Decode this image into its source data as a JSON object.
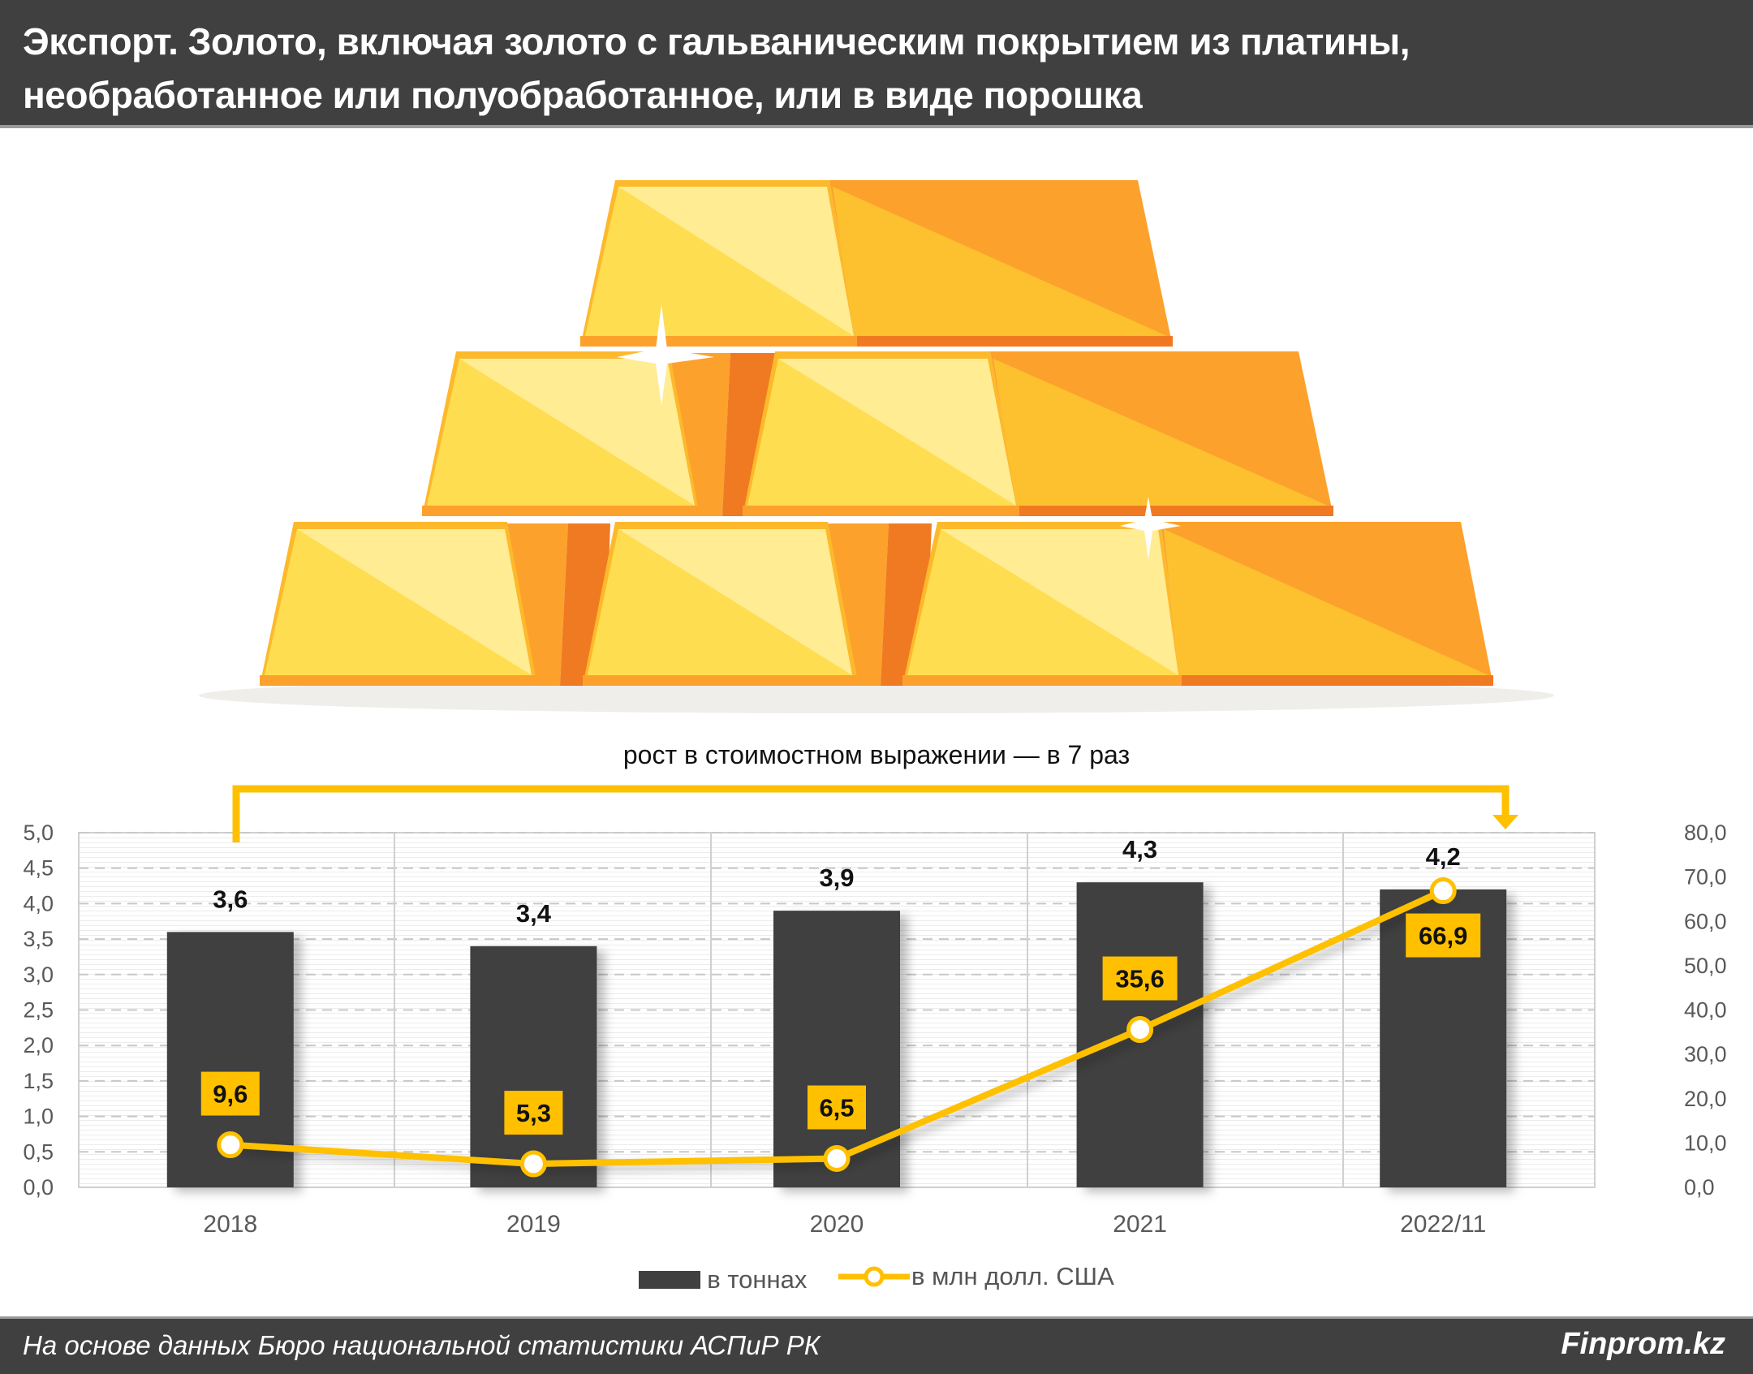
{
  "header": {
    "title_line1": "Экспорт. Золото, включая золото с гальваническим покрытием из платины,",
    "title_line2": "необработанное или полуобработанное, или в виде порошка"
  },
  "illustration": {
    "icon": "gold-bars-pyramid-icon",
    "colors": {
      "light": "#FFEC93",
      "mid": "#FFDD50",
      "gold": "#FDC12F",
      "orange": "#FDA12D",
      "dark_orange": "#F07A22"
    }
  },
  "annotation": {
    "text": "рост в стоимостном выражении — в 7 раз",
    "color": "#FFC000"
  },
  "legend": {
    "bars_label": "в тоннах",
    "line_label": "в млн долл. США"
  },
  "footer": {
    "source": "На основе данных Бюро национальной статистики АСПиР РК",
    "brand": "Finprom.kz"
  },
  "colors": {
    "header_bg": "#404040",
    "bar": "#404040",
    "line": "#FFC000",
    "label_box": "#FFC000",
    "grid": "#C8C8C8",
    "axis_text": "#595959"
  },
  "chart_data": {
    "type": "bar+line",
    "title": "Экспорт. Золото, включая золото с гальваническим покрытием из платины, необработанное или полуобработанное, или в виде порошка",
    "categories": [
      "2018",
      "2019",
      "2020",
      "2021",
      "2022/11"
    ],
    "series": [
      {
        "name": "в тоннах",
        "type": "bar",
        "axis": "left",
        "values": [
          3.6,
          3.4,
          3.9,
          4.3,
          4.2
        ],
        "labels": [
          "3,6",
          "3,4",
          "3,9",
          "4,3",
          "4,2"
        ]
      },
      {
        "name": "в млн долл. США",
        "type": "line",
        "axis": "right",
        "values": [
          9.6,
          5.3,
          6.5,
          35.6,
          66.9
        ],
        "labels": [
          "9,6",
          "5,3",
          "6,5",
          "35,6",
          "66,9"
        ]
      }
    ],
    "left_axis": {
      "ylim": [
        0,
        5
      ],
      "ticks": [
        "0,0",
        "0,5",
        "1,0",
        "1,5",
        "2,0",
        "2,5",
        "3,0",
        "3,5",
        "4,0",
        "4,5",
        "5,0"
      ]
    },
    "right_axis": {
      "ylim": [
        0,
        80
      ],
      "ticks": [
        "0,0",
        "10,0",
        "20,0",
        "30,0",
        "40,0",
        "50,0",
        "60,0",
        "70,0",
        "80,0"
      ]
    },
    "xlabel": "",
    "ylabel": "",
    "grid": true,
    "legend_position": "bottom",
    "annotations": [
      "рост в стоимостном выражении — в 7 раз"
    ]
  }
}
